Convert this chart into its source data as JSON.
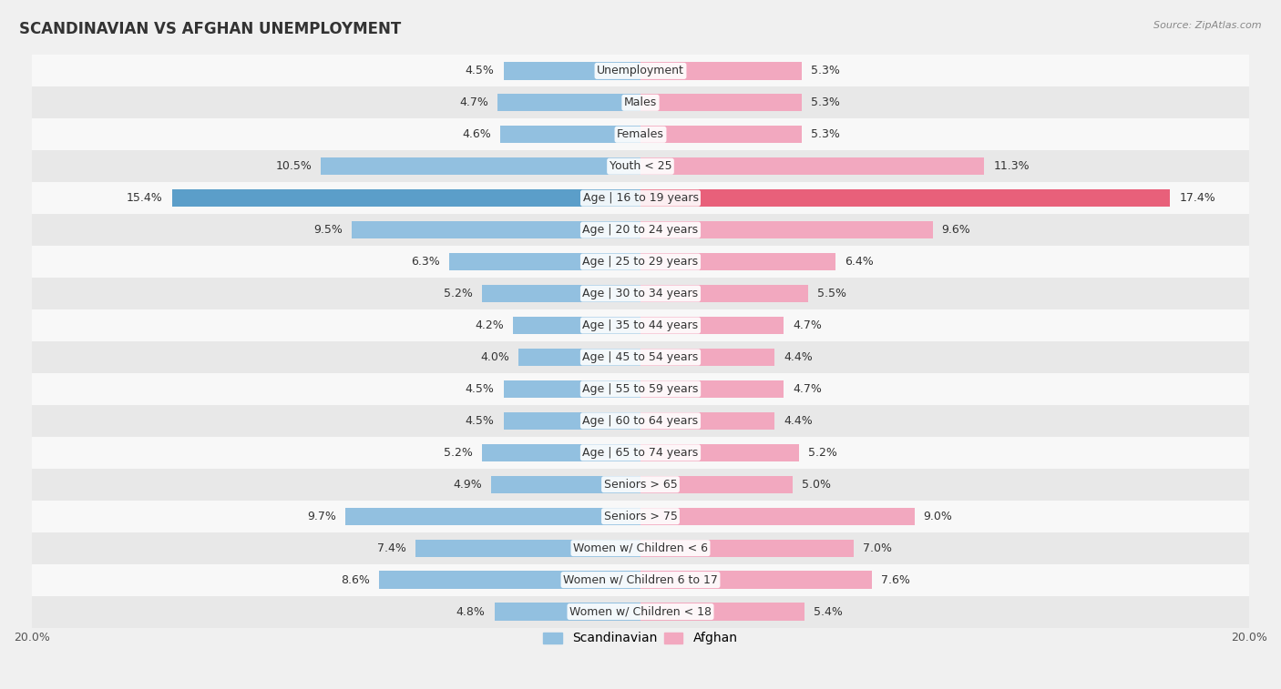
{
  "title": "SCANDINAVIAN VS AFGHAN UNEMPLOYMENT",
  "source": "Source: ZipAtlas.com",
  "categories": [
    "Unemployment",
    "Males",
    "Females",
    "Youth < 25",
    "Age | 16 to 19 years",
    "Age | 20 to 24 years",
    "Age | 25 to 29 years",
    "Age | 30 to 34 years",
    "Age | 35 to 44 years",
    "Age | 45 to 54 years",
    "Age | 55 to 59 years",
    "Age | 60 to 64 years",
    "Age | 65 to 74 years",
    "Seniors > 65",
    "Seniors > 75",
    "Women w/ Children < 6",
    "Women w/ Children 6 to 17",
    "Women w/ Children < 18"
  ],
  "scandinavian": [
    4.5,
    4.7,
    4.6,
    10.5,
    15.4,
    9.5,
    6.3,
    5.2,
    4.2,
    4.0,
    4.5,
    4.5,
    5.2,
    4.9,
    9.7,
    7.4,
    8.6,
    4.8
  ],
  "afghan": [
    5.3,
    5.3,
    5.3,
    11.3,
    17.4,
    9.6,
    6.4,
    5.5,
    4.7,
    4.4,
    4.7,
    4.4,
    5.2,
    5.0,
    9.0,
    7.0,
    7.6,
    5.4
  ],
  "scandinavian_color": "#92c0e0",
  "afghan_color": "#f2a8bf",
  "highlight_scandinavian_color": "#5b9ec9",
  "highlight_afghan_color": "#e8607a",
  "max_val": 20.0,
  "bg_color": "#f0f0f0",
  "row_light_color": "#f8f8f8",
  "row_dark_color": "#e8e8e8",
  "label_fontsize": 9,
  "title_fontsize": 12,
  "bar_height": 0.55,
  "highlight_indices": [
    4
  ]
}
